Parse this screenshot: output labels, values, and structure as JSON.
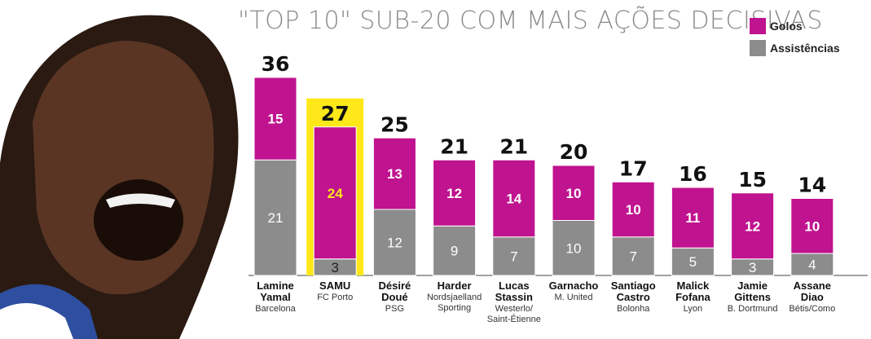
{
  "chart_data": {
    "type": "bar",
    "stacked": true,
    "title": "\"TOP 10\" SUB-20 COM MAIS AÇÕES DECISIVAS",
    "legend": [
      {
        "name": "Golos",
        "color": "#c0138f"
      },
      {
        "name": "Assistências",
        "color": "#8c8c8c"
      }
    ],
    "legend_position": "top-right",
    "highlight_index": 1,
    "highlight_color": "#ffe819",
    "ylim": [
      0,
      36
    ],
    "grid": false,
    "players": [
      {
        "name": [
          "Lamine",
          "Yamal"
        ],
        "club": [
          "Barcelona"
        ],
        "total": "36",
        "golos": 15,
        "assistencias": 21
      },
      {
        "name": [
          "SAMU"
        ],
        "club": [
          "FC Porto"
        ],
        "total": "27",
        "golos": 24,
        "assistencias": 3
      },
      {
        "name": [
          "Désiré",
          "Doué"
        ],
        "club": [
          "PSG"
        ],
        "total": "25",
        "golos": 13,
        "assistencias": 12
      },
      {
        "name": [
          "Harder"
        ],
        "club": [
          "Nordsjaelland",
          "Sporting"
        ],
        "total": "21",
        "golos": 12,
        "assistencias": 9
      },
      {
        "name": [
          "Lucas",
          "Stassin"
        ],
        "club": [
          "Westerlo/",
          "Saint-Étienne"
        ],
        "total": "21",
        "golos": 14,
        "assistencias": 7
      },
      {
        "name": [
          "Garnacho"
        ],
        "club": [
          "M. United"
        ],
        "total": "20",
        "golos": 10,
        "assistencias": 10
      },
      {
        "name": [
          "Santiago",
          "Castro"
        ],
        "club": [
          "Bolonha"
        ],
        "total": "17",
        "golos": 10,
        "assistencias": 7
      },
      {
        "name": [
          "Malick",
          "Fofana"
        ],
        "club": [
          "Lyon"
        ],
        "total": "16",
        "golos": 11,
        "assistencias": 5
      },
      {
        "name": [
          "Jamie",
          "Gittens"
        ],
        "club": [
          "B. Dortmund"
        ],
        "total": "15",
        "golos": 12,
        "assistencias": 3
      },
      {
        "name": [
          "Assane",
          "Diao"
        ],
        "club": [
          "Bétis/Como"
        ],
        "total": "14",
        "golos": 10,
        "assistencias": 4
      }
    ]
  }
}
